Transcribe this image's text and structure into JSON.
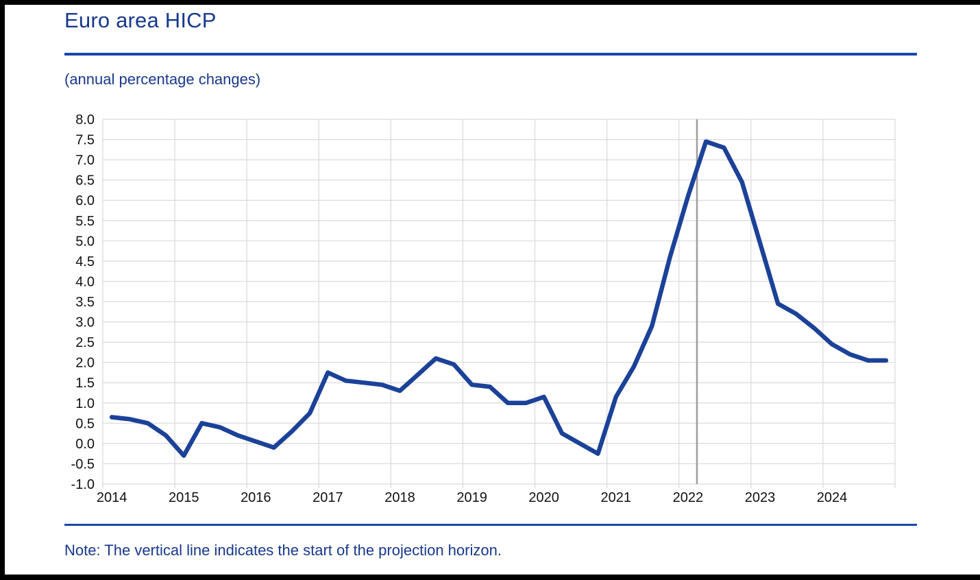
{
  "header": {
    "title": "Euro area HICP",
    "subtitle": "(annual percentage changes)"
  },
  "note": {
    "text": "Note: The vertical line indicates the start of the projection horizon."
  },
  "chart_data": {
    "type": "line",
    "title": "Euro area HICP",
    "subtitle": "(annual percentage changes)",
    "xlabel": "",
    "ylabel": "annual percentage changes",
    "frequency": "quarterly",
    "categories": [
      "2014-Q1",
      "2014-Q2",
      "2014-Q3",
      "2014-Q4",
      "2015-Q1",
      "2015-Q2",
      "2015-Q3",
      "2015-Q4",
      "2016-Q1",
      "2016-Q2",
      "2016-Q3",
      "2016-Q4",
      "2017-Q1",
      "2017-Q2",
      "2017-Q3",
      "2017-Q4",
      "2018-Q1",
      "2018-Q2",
      "2018-Q3",
      "2018-Q4",
      "2019-Q1",
      "2019-Q2",
      "2019-Q3",
      "2019-Q4",
      "2020-Q1",
      "2020-Q2",
      "2020-Q3",
      "2020-Q4",
      "2021-Q1",
      "2021-Q2",
      "2021-Q3",
      "2021-Q4",
      "2022-Q1",
      "2022-Q2",
      "2022-Q3",
      "2022-Q4",
      "2023-Q1",
      "2023-Q2",
      "2023-Q3",
      "2023-Q4",
      "2024-Q1",
      "2024-Q2",
      "2024-Q3",
      "2024-Q4"
    ],
    "series": [
      {
        "name": "Euro area HICP",
        "color": "#1B4298"
      }
    ],
    "values": [
      0.65,
      0.6,
      0.5,
      0.2,
      -0.3,
      0.5,
      0.4,
      0.2,
      0.05,
      -0.1,
      0.3,
      0.75,
      1.75,
      1.55,
      1.5,
      1.45,
      1.3,
      1.7,
      2.1,
      1.95,
      1.45,
      1.4,
      1.0,
      1.0,
      1.15,
      0.25,
      0.0,
      -0.25,
      1.15,
      1.9,
      2.9,
      4.6,
      6.1,
      7.45,
      7.3,
      6.45,
      4.95,
      3.45,
      3.2,
      2.85,
      2.45,
      2.2,
      2.05,
      2.05
    ],
    "ylim": [
      -1.0,
      8.0
    ],
    "y_tick_step": 0.5,
    "x_tick_labels": [
      "2014",
      "2015",
      "2016",
      "2017",
      "2018",
      "2019",
      "2020",
      "2021",
      "2022",
      "2023",
      "2024"
    ],
    "grid": true,
    "legend_position": "none",
    "vline_boundary_quarter_index": 33,
    "vline_position": "between 2022-Q1 and 2022-Q2",
    "vline_label": "start of the projection horizon",
    "colors": {
      "line": "#1B4298",
      "grid": "#D9D9D9",
      "axis_text": "#111111",
      "projection_line": "#9E9E9E",
      "blue_text": "#17388C",
      "rule_blue": "#1747AD",
      "frame_black": "#000000"
    }
  }
}
